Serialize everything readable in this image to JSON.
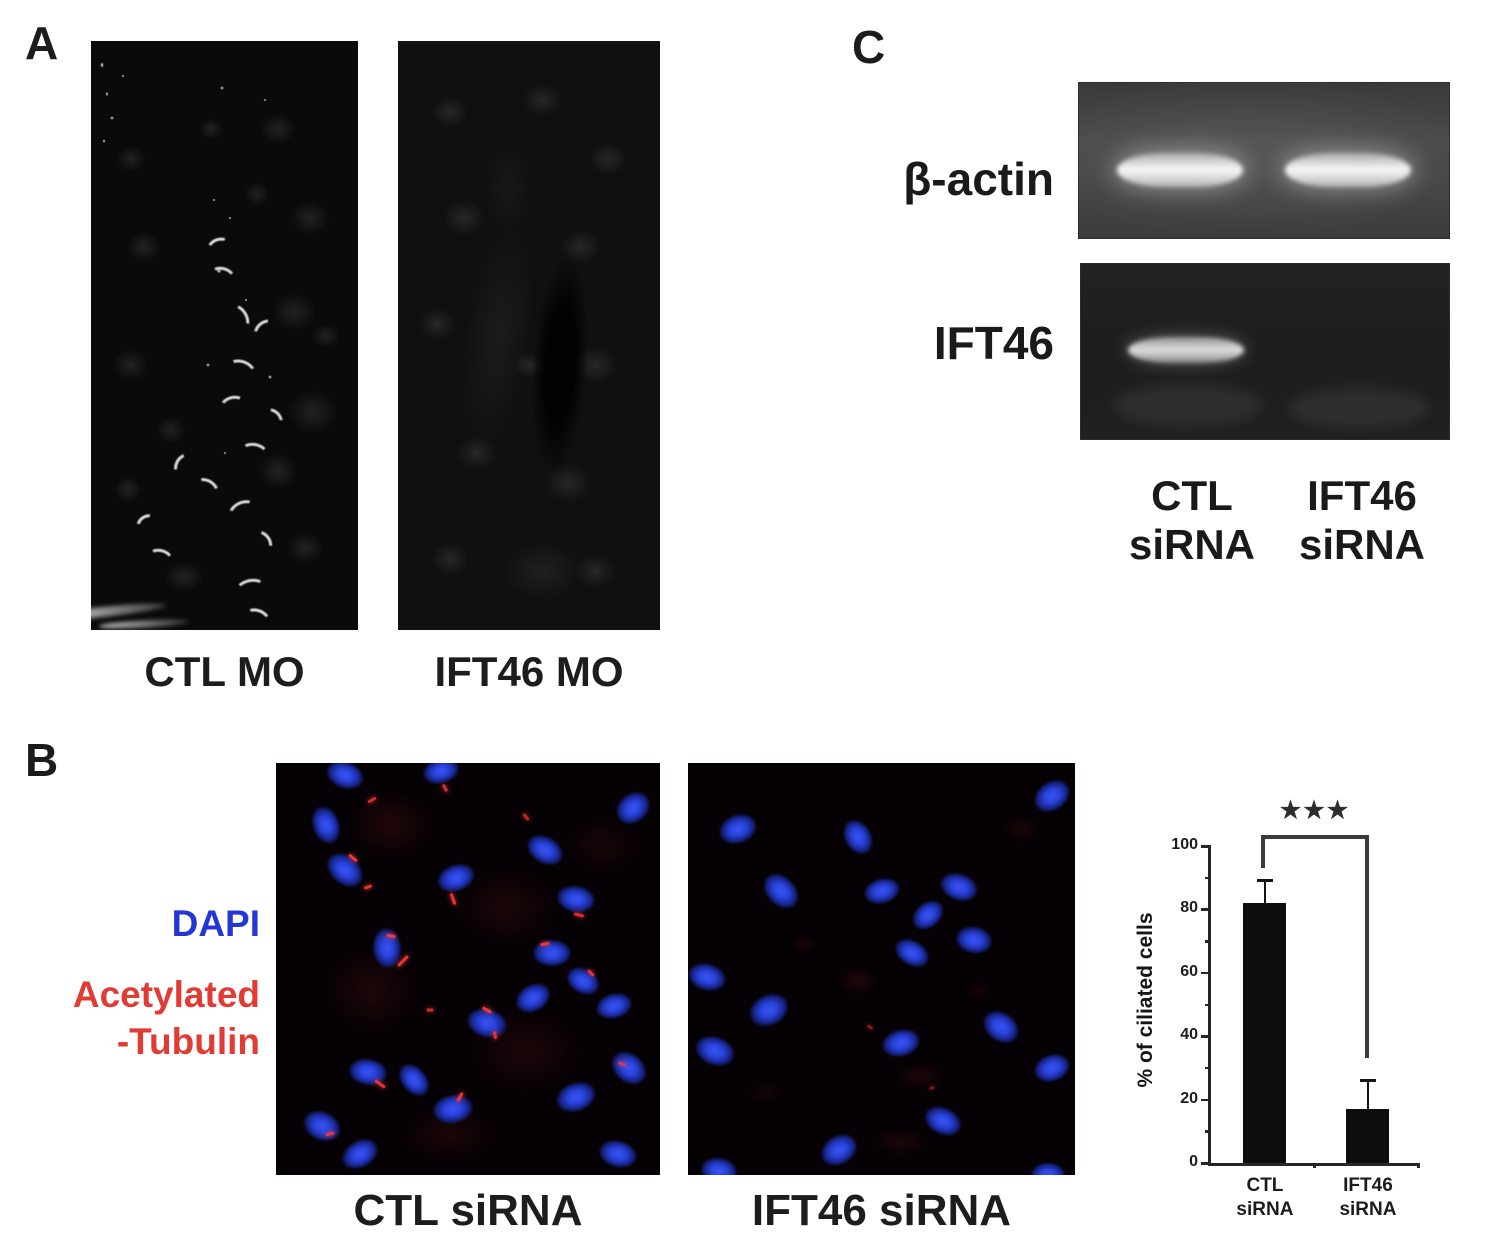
{
  "panels": {
    "A": {
      "label": "A",
      "captions": [
        "CTL MO",
        "IFT46 MO"
      ]
    },
    "B": {
      "label": "B",
      "legend": {
        "line1": "DAPI",
        "line2": "Acetylated",
        "line3": "-Tubulin",
        "dapi_color": "#2436d6",
        "tubulin_color": "#e23b34"
      },
      "captions": [
        "CTL siRNA",
        "IFT46 siRNA"
      ]
    },
    "C": {
      "label": "C",
      "gels": [
        {
          "target": "β-actin",
          "bands": [
            true,
            true
          ]
        },
        {
          "target": "IFT46",
          "bands": [
            true,
            false
          ]
        }
      ],
      "lanes": [
        {
          "line1": "CTL",
          "line2": "siRNA"
        },
        {
          "line1": "IFT46",
          "line2": "siRNA"
        }
      ]
    }
  },
  "chart_data": {
    "type": "bar",
    "categories": [
      [
        "CTL",
        "siRNA"
      ],
      [
        "IFT46",
        "siRNA"
      ]
    ],
    "values": [
      82,
      17
    ],
    "errors": [
      7,
      9
    ],
    "title": "",
    "xlabel": "",
    "ylabel": "% of ciliated cells",
    "ylim": [
      0,
      100
    ],
    "ytick_step": 20,
    "yminor_step": 10,
    "grid": false,
    "legend_position": "none",
    "significance": "★★★",
    "bar_color": "#0d0d0d"
  },
  "artwork": {
    "a_left": {
      "blobs": [
        [
          15,
          20,
          30,
          26
        ],
        [
          70,
          15,
          36,
          30
        ],
        [
          82,
          30,
          40,
          34
        ],
        [
          20,
          35,
          34,
          30
        ],
        [
          76,
          46,
          44,
          38
        ],
        [
          83,
          63,
          50,
          44
        ],
        [
          15,
          55,
          36,
          32
        ],
        [
          70,
          73,
          40,
          36
        ],
        [
          30,
          66,
          30,
          28
        ],
        [
          80,
          86,
          36,
          32
        ],
        [
          35,
          91,
          40,
          30
        ],
        [
          14,
          76,
          28,
          26
        ],
        [
          62,
          26,
          26,
          24
        ],
        [
          45,
          15,
          24,
          22
        ],
        [
          88,
          50,
          28,
          24
        ]
      ],
      "cilia": [
        [
          48,
          35,
          18,
          12,
          -20
        ],
        [
          49,
          40,
          20,
          14,
          15
        ],
        [
          55,
          47,
          22,
          14,
          60
        ],
        [
          65,
          49,
          18,
          12,
          -40
        ],
        [
          56,
          56,
          24,
          16,
          20
        ],
        [
          53,
          62,
          20,
          14,
          -15
        ],
        [
          68,
          64,
          16,
          10,
          45
        ],
        [
          61,
          70,
          22,
          14,
          10
        ],
        [
          35,
          72,
          18,
          12,
          -60
        ],
        [
          43,
          76,
          20,
          14,
          30
        ],
        [
          57,
          80,
          24,
          16,
          -25
        ],
        [
          64,
          85,
          18,
          12,
          55
        ],
        [
          21,
          82,
          16,
          12,
          -35
        ],
        [
          26,
          88,
          20,
          14,
          15
        ],
        [
          60,
          93,
          24,
          14,
          -10
        ],
        [
          62,
          98,
          20,
          12,
          20
        ]
      ],
      "specks": [
        [
          49,
          8,
          4,
          4
        ],
        [
          65,
          10,
          3,
          3
        ],
        [
          4,
          4,
          4,
          6
        ],
        [
          6,
          9,
          3,
          5
        ],
        [
          8,
          13,
          4,
          4
        ],
        [
          5,
          17,
          3,
          4
        ],
        [
          48,
          39,
          5,
          5
        ],
        [
          67,
          57,
          4,
          4
        ],
        [
          52,
          30,
          3,
          3
        ],
        [
          12,
          6,
          3,
          3
        ],
        [
          44,
          55,
          4,
          4
        ],
        [
          50,
          70,
          3,
          3
        ],
        [
          46,
          27,
          3,
          3
        ],
        [
          58,
          44,
          3,
          3
        ]
      ],
      "streaks": [
        [
          4,
          97,
          130,
          10,
          -6,
          0.95
        ],
        [
          20,
          99,
          90,
          7,
          -3,
          0.8
        ]
      ]
    },
    "a_right": {
      "blobs": [
        [
          20,
          12,
          36,
          30
        ],
        [
          55,
          10,
          40,
          32
        ],
        [
          80,
          20,
          38,
          32
        ],
        [
          25,
          30,
          42,
          36
        ],
        [
          70,
          35,
          40,
          34
        ],
        [
          15,
          48,
          38,
          32
        ],
        [
          75,
          55,
          44,
          38
        ],
        [
          30,
          70,
          40,
          34
        ],
        [
          65,
          75,
          46,
          40
        ],
        [
          20,
          88,
          38,
          32
        ],
        [
          75,
          90,
          40,
          34
        ],
        [
          50,
          55,
          30,
          26
        ]
      ],
      "haze": [
        [
          38,
          50,
          70,
          240,
          8,
          0.1
        ],
        [
          42,
          25,
          50,
          90,
          0,
          0.08
        ],
        [
          55,
          90,
          80,
          60,
          0,
          0.14
        ]
      ],
      "slot": [
        [
          62,
          55,
          55,
          220,
          4,
          0.85
        ]
      ]
    },
    "b_left": {
      "nuclei": [
        [
          18,
          3,
          40,
          28,
          20
        ],
        [
          43,
          2,
          38,
          26,
          -15
        ],
        [
          13,
          15,
          40,
          28,
          70
        ],
        [
          18,
          26,
          42,
          30,
          40
        ],
        [
          47,
          28,
          40,
          28,
          -20
        ],
        [
          70,
          21,
          40,
          28,
          30
        ],
        [
          93,
          11,
          38,
          30,
          -40
        ],
        [
          78,
          33,
          40,
          28,
          10
        ],
        [
          29,
          45,
          42,
          30,
          85
        ],
        [
          72,
          46,
          40,
          28,
          0
        ],
        [
          80,
          53,
          36,
          26,
          30
        ],
        [
          67,
          57,
          38,
          28,
          -30
        ],
        [
          55,
          63,
          42,
          30,
          15
        ],
        [
          88,
          59,
          38,
          26,
          -15
        ],
        [
          92,
          74,
          40,
          30,
          40
        ],
        [
          78,
          81,
          42,
          30,
          -20
        ],
        [
          24,
          75,
          40,
          28,
          10
        ],
        [
          36,
          77,
          38,
          26,
          50
        ],
        [
          46,
          84,
          42,
          30,
          -10
        ],
        [
          12,
          88,
          40,
          30,
          25
        ],
        [
          22,
          95,
          40,
          28,
          -30
        ],
        [
          89,
          95,
          40,
          28,
          15
        ]
      ],
      "red_haze": [
        [
          30,
          15,
          90,
          70,
          0,
          0.18
        ],
        [
          60,
          35,
          110,
          80,
          0,
          0.15
        ],
        [
          25,
          55,
          100,
          90,
          0,
          0.16
        ],
        [
          65,
          70,
          120,
          90,
          0,
          0.15
        ],
        [
          45,
          90,
          100,
          60,
          0,
          0.14
        ],
        [
          85,
          20,
          80,
          60,
          0,
          0.12
        ]
      ],
      "red_marks": [
        [
          20,
          23,
          10,
          3,
          40,
          0.95
        ],
        [
          24,
          30,
          8,
          3,
          -20,
          0.9
        ],
        [
          46,
          33,
          12,
          3,
          70,
          0.9
        ],
        [
          30,
          42,
          9,
          3,
          10,
          0.95
        ],
        [
          33,
          48,
          14,
          3,
          -45,
          0.9
        ],
        [
          55,
          60,
          10,
          3,
          30,
          0.95
        ],
        [
          57,
          66,
          8,
          3,
          80,
          0.85
        ],
        [
          70,
          44,
          9,
          3,
          -10,
          0.9
        ],
        [
          82,
          51,
          8,
          3,
          45,
          0.85
        ],
        [
          79,
          37,
          10,
          3,
          15,
          0.85
        ],
        [
          44,
          6,
          8,
          3,
          60,
          0.8
        ],
        [
          25,
          9,
          9,
          3,
          -30,
          0.8
        ],
        [
          90,
          73,
          8,
          3,
          20,
          0.8
        ],
        [
          48,
          81,
          10,
          3,
          -60,
          0.9
        ],
        [
          27,
          78,
          12,
          3,
          35,
          0.9
        ],
        [
          14,
          90,
          9,
          3,
          -15,
          0.85
        ],
        [
          65,
          13,
          8,
          3,
          50,
          0.7
        ],
        [
          40,
          60,
          7,
          3,
          0,
          0.8
        ]
      ]
    },
    "b_right": {
      "nuclei": [
        [
          13,
          16,
          40,
          30,
          -20
        ],
        [
          44,
          18,
          38,
          28,
          60
        ],
        [
          94,
          8,
          40,
          30,
          -35
        ],
        [
          24,
          31,
          42,
          30,
          45
        ],
        [
          50,
          31,
          38,
          26,
          -15
        ],
        [
          70,
          30,
          40,
          28,
          20
        ],
        [
          62,
          37,
          36,
          26,
          -40
        ],
        [
          74,
          43,
          38,
          28,
          10
        ],
        [
          58,
          46,
          38,
          26,
          30
        ],
        [
          5,
          52,
          40,
          28,
          15
        ],
        [
          21,
          60,
          42,
          32,
          -25
        ],
        [
          7,
          70,
          42,
          30,
          20
        ],
        [
          55,
          68,
          40,
          28,
          -15
        ],
        [
          81,
          64,
          40,
          30,
          35
        ],
        [
          94,
          74,
          38,
          28,
          -20
        ],
        [
          66,
          87,
          40,
          28,
          25
        ],
        [
          39,
          94,
          40,
          30,
          -30
        ],
        [
          8,
          99,
          38,
          28,
          10
        ],
        [
          93,
          100,
          36,
          26,
          0
        ]
      ],
      "red_haze": [
        [
          44,
          53,
          40,
          30,
          0,
          0.18
        ],
        [
          60,
          76,
          50,
          30,
          0,
          0.16
        ],
        [
          86,
          16,
          40,
          30,
          0,
          0.14
        ],
        [
          30,
          44,
          30,
          20,
          0,
          0.12
        ],
        [
          55,
          92,
          60,
          30,
          0,
          0.15
        ],
        [
          75,
          55,
          30,
          20,
          0,
          0.1
        ],
        [
          20,
          80,
          40,
          24,
          0,
          0.1
        ]
      ],
      "red_marks": [
        [
          47,
          64,
          6,
          3,
          30,
          0.5
        ],
        [
          63,
          79,
          5,
          3,
          -20,
          0.45
        ]
      ]
    }
  }
}
